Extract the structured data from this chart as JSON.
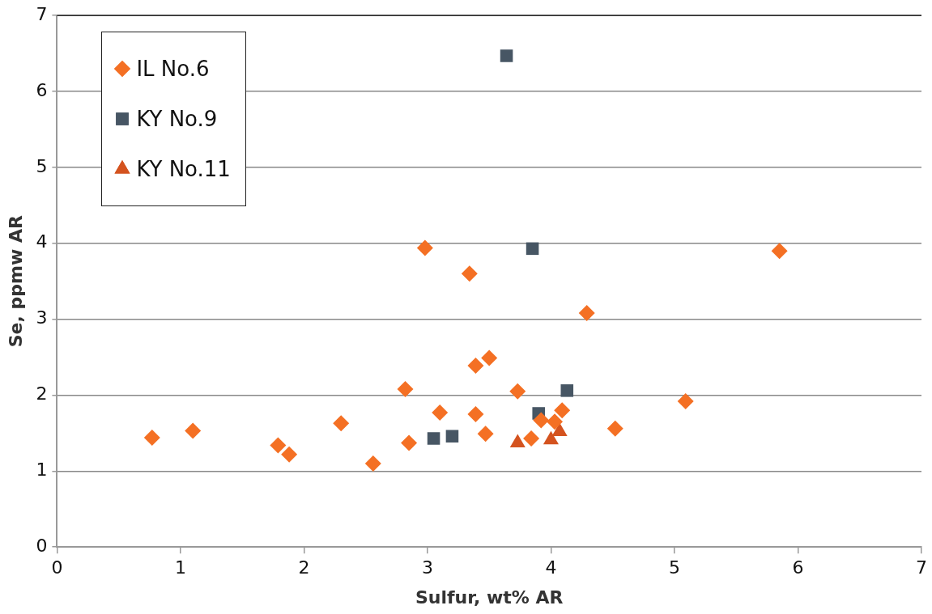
{
  "chart_data": {
    "type": "scatter",
    "xlabel": "Sulfur, wt% AR",
    "ylabel": "Se, ppmw AR",
    "xlim": [
      0,
      7
    ],
    "xticks": [
      0,
      1,
      2,
      3,
      4,
      5,
      6,
      7
    ],
    "ylim": [
      0,
      7
    ],
    "yticks": [
      0,
      1,
      2,
      3,
      4,
      5,
      6,
      7
    ],
    "grid": "y",
    "legend": "top left",
    "series": [
      {
        "name": "IL No.6",
        "color": "#f47024",
        "marker": "diamond",
        "x": [
          0.77,
          1.1,
          1.79,
          1.88,
          2.3,
          2.56,
          2.82,
          2.85,
          2.98,
          3.1,
          3.34,
          3.39,
          3.39,
          3.47,
          3.5,
          3.73,
          3.84,
          3.92,
          4.03,
          4.09,
          4.29,
          4.52,
          5.09,
          5.85
        ],
        "values": [
          1.44,
          1.53,
          1.34,
          1.22,
          1.63,
          1.1,
          2.08,
          1.37,
          3.94,
          1.77,
          3.6,
          2.39,
          1.75,
          1.49,
          2.49,
          2.05,
          1.43,
          1.67,
          1.65,
          1.8,
          3.08,
          1.56,
          1.92,
          3.9
        ]
      },
      {
        "name": "KY No.9",
        "color": "#475664",
        "marker": "square",
        "x": [
          3.05,
          3.2,
          3.64,
          3.85,
          3.9,
          4.13
        ],
        "values": [
          1.43,
          1.46,
          6.47,
          3.93,
          1.76,
          2.06
        ]
      },
      {
        "name": "KY No.11",
        "color": "#d4531f",
        "marker": "triangle",
        "x": [
          3.73,
          4.0,
          4.07
        ],
        "values": [
          1.37,
          1.41,
          1.52
        ]
      }
    ]
  }
}
